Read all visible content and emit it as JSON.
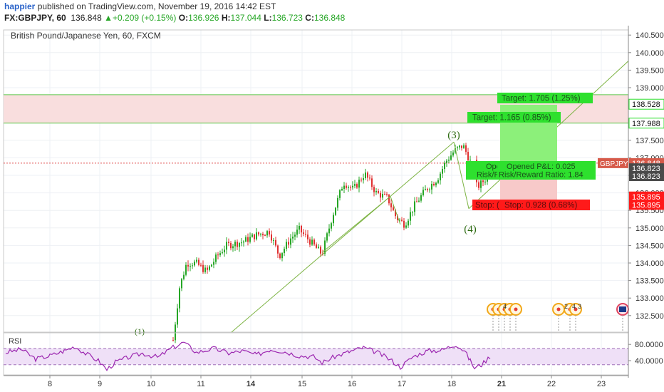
{
  "header": {
    "author": "happier",
    "published": "published on TradingView.com, November 19, 2016 14:42 EST",
    "symbol": "FX:GBPJPY, 60",
    "last": "136.848",
    "change_arrow": "▲",
    "change": "+0.209 (+0.15%)",
    "o_label": "O:",
    "o_value": "136.926",
    "h_label": "H:",
    "h_value": "137.044",
    "l_label": "L:",
    "l_value": "136.723",
    "c_label": "C:",
    "c_value": "136.848"
  },
  "colors": {
    "up": "#26a626",
    "down": "#e03030",
    "wedge": "#7cb342",
    "rsi": "#9c27b0",
    "rsi_band": "#efe0f7",
    "zone": "#f9dede",
    "target_fill": "#8cf07a",
    "stop_fill": "#f7c9c9",
    "label_green": "#2ee02e",
    "label_red": "#ff1a1a",
    "price_tag": "#d65a4a"
  },
  "chart_data": [
    {
      "type": "candlestick",
      "title": "British Pound/Japanese Yen, 60, FXCM",
      "ylim": [
        132.2,
        140.7
      ],
      "y_ticks": [
        "140.500",
        "140.000",
        "139.500",
        "139.000",
        "138.500",
        "138.000",
        "137.500",
        "137.000",
        "136.500",
        "136.000",
        "135.500",
        "135.000",
        "134.500",
        "134.000",
        "133.500",
        "133.000",
        "132.500"
      ],
      "x_ticks": [
        "8",
        "9",
        "10",
        "11",
        "14",
        "15",
        "16",
        "17",
        "18",
        "21",
        "22",
        "23"
      ],
      "x_ticks_bold": [
        "14",
        "21"
      ],
      "key_points": [
        {
          "label": "(3)",
          "price": 137.45
        },
        {
          "label": "(4)",
          "price": 135.55
        }
      ],
      "resistance_zone": [
        137.988,
        138.8
      ],
      "price_labels": [
        {
          "text": "138.528",
          "price": 138.528,
          "style": "green"
        },
        {
          "text": "137.988",
          "price": 137.988,
          "style": "green"
        },
        {
          "text": "136.848",
          "price": 136.848,
          "style": "tag",
          "name": "GBPJPY"
        },
        {
          "text": "136.823",
          "price": 136.7,
          "style": "dark"
        },
        {
          "text": "136.823",
          "price": 136.48,
          "style": "dark"
        },
        {
          "text": "135.895",
          "price": 135.895,
          "style": "red"
        },
        {
          "text": "135.895",
          "price": 135.66,
          "style": "red"
        }
      ],
      "trades": [
        {
          "target": "Target: 1.165 (0.85%)",
          "opened": "Ope",
          "risk": "Risk/R",
          "stop": "Stop: ("
        },
        {
          "target": "Target: 1.705 (1.25%)",
          "opened": "Opened P&L: 0.025",
          "risk": "Risk/Reward Ratio: 1.84",
          "stop": "Stop: 0.928 (0.68%)"
        }
      ],
      "event_marks": [
        "4",
        "2",
        "4",
        "3"
      ]
    },
    {
      "type": "line",
      "title": "RSI",
      "ylim": [
        10,
        100
      ],
      "y_ticks": [
        "80.0000",
        "40.0000"
      ],
      "bands": [
        30,
        70
      ]
    }
  ]
}
